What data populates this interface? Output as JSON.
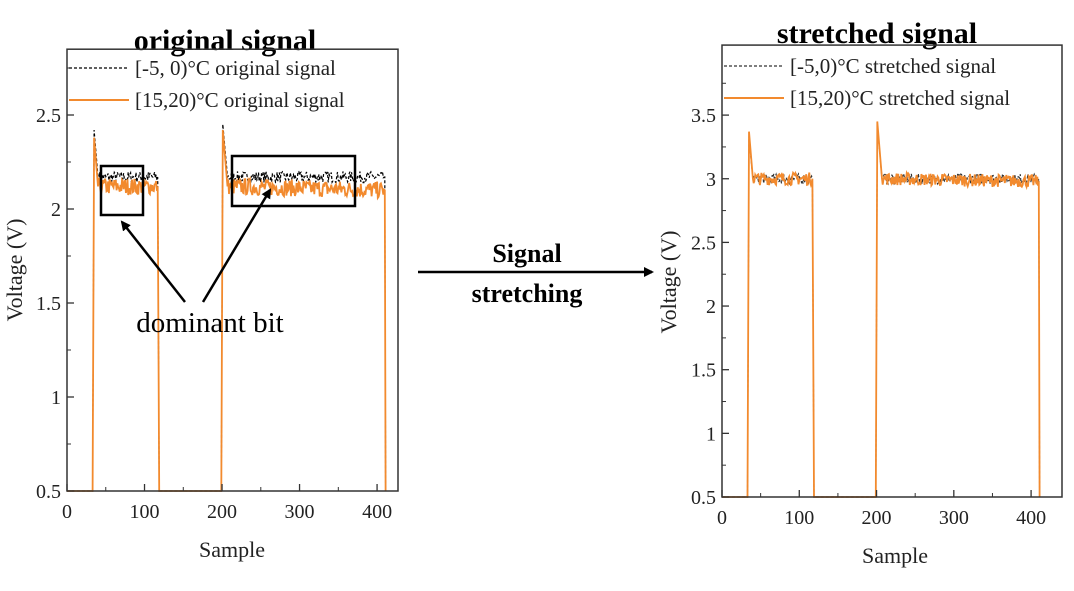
{
  "chart_data": [
    {
      "type": "line",
      "title": "original signal",
      "xlabel": "Sample",
      "ylabel": "Voltage (V)",
      "xlim": [
        0,
        427
      ],
      "ylim": [
        0.5,
        2.85
      ],
      "xticks": [
        0,
        100,
        200,
        300,
        400
      ],
      "yticks": [
        0.5,
        1.0,
        1.5,
        2.0,
        2.5
      ],
      "legend_position": "top-left",
      "series": [
        {
          "name": "[-5, 0)°C original signal",
          "color": "#000000",
          "style": "dashed",
          "noise": 0.03,
          "points": [
            [
              0,
              0.5
            ],
            [
              33,
              0.5
            ],
            [
              35,
              2.42
            ],
            [
              40,
              2.17
            ],
            [
              117,
              2.17
            ],
            [
              119,
              0.5
            ],
            [
              199,
              0.5
            ],
            [
              201,
              2.45
            ],
            [
              207,
              2.17
            ],
            [
              410,
              2.17
            ],
            [
              411,
              0.5
            ]
          ]
        },
        {
          "name": "[15,20)°C original signal",
          "color": "#f28a2e",
          "style": "solid",
          "noise": 0.045,
          "points": [
            [
              0,
              0.5
            ],
            [
              33,
              0.5
            ],
            [
              35,
              2.38
            ],
            [
              40,
              2.12
            ],
            [
              117,
              2.12
            ],
            [
              119,
              0.5
            ],
            [
              199,
              0.5
            ],
            [
              201,
              2.42
            ],
            [
              207,
              2.12
            ],
            [
              410,
              2.1
            ],
            [
              411,
              0.5
            ]
          ]
        }
      ],
      "annotations": {
        "label": "dominant bit"
      }
    },
    {
      "type": "line",
      "title": "stretched signal",
      "xlabel": "Sample",
      "ylabel": "Voltage (V)",
      "xlim": [
        0,
        440
      ],
      "ylim": [
        0.5,
        4.05
      ],
      "xticks": [
        0,
        100,
        200,
        300,
        400
      ],
      "yticks": [
        0.5,
        1.0,
        1.5,
        2.0,
        2.5,
        3.0,
        3.5
      ],
      "legend_position": "top-left",
      "series": [
        {
          "name": "[-5,0)°C stretched signal",
          "color": "#333333",
          "style": "dashed",
          "noise": 0.04,
          "points": [
            [
              0,
              0.5
            ],
            [
              33,
              0.5
            ],
            [
              35,
              3.33
            ],
            [
              40,
              3.0
            ],
            [
              117,
              3.0
            ],
            [
              119,
              0.5
            ],
            [
              199,
              0.5
            ],
            [
              201,
              3.43
            ],
            [
              207,
              3.0
            ],
            [
              410,
              3.0
            ],
            [
              411,
              0.5
            ]
          ]
        },
        {
          "name": "[15,20)°C stretched signal",
          "color": "#f28a2e",
          "style": "solid",
          "noise": 0.05,
          "points": [
            [
              0,
              0.5
            ],
            [
              33,
              0.5
            ],
            [
              35,
              3.37
            ],
            [
              40,
              3.0
            ],
            [
              117,
              3.0
            ],
            [
              119,
              0.5
            ],
            [
              199,
              0.5
            ],
            [
              201,
              3.45
            ],
            [
              207,
              3.0
            ],
            [
              410,
              2.98
            ],
            [
              411,
              0.5
            ]
          ]
        }
      ]
    }
  ],
  "middle_arrow": {
    "line1": "Signal",
    "line2": "stretching"
  }
}
